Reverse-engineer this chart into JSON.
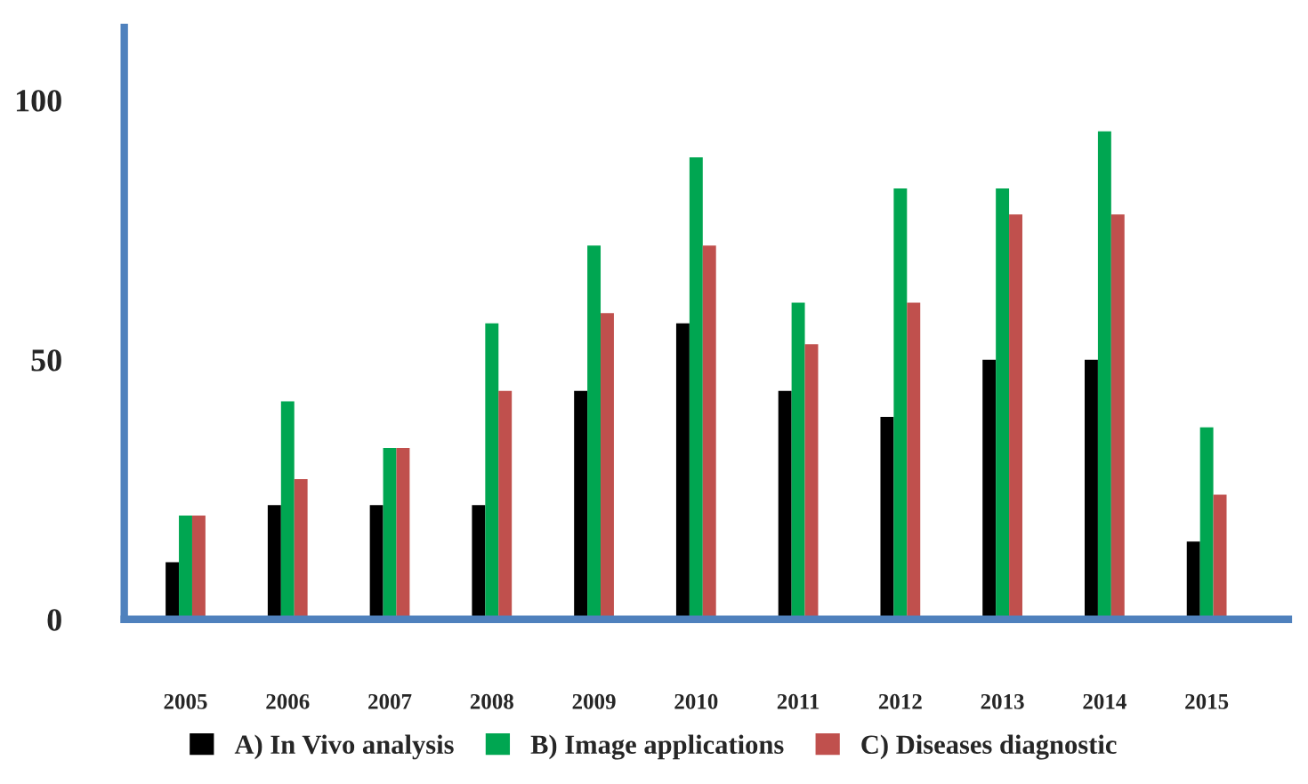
{
  "chart_data": {
    "type": "bar",
    "categories": [
      "2005",
      "2006",
      "2007",
      "2008",
      "2009",
      "2010",
      "2011",
      "2012",
      "2013",
      "2014",
      "2015"
    ],
    "series": [
      {
        "name": "A) In Vivo analysis",
        "color": "#000000",
        "values": [
          11,
          22,
          22,
          22,
          44,
          57,
          44,
          39,
          50,
          50,
          15
        ]
      },
      {
        "name": "B) Image applications",
        "color": "#00a651",
        "values": [
          20,
          42,
          33,
          57,
          72,
          89,
          61,
          83,
          83,
          94,
          37
        ]
      },
      {
        "name": "C) Diseases diagnostic",
        "color": "#c0504d",
        "values": [
          20,
          27,
          33,
          44,
          59,
          72,
          53,
          61,
          78,
          78,
          24
        ]
      }
    ],
    "ylim": [
      0,
      114
    ],
    "yticks": [
      0,
      50,
      100
    ],
    "grid": false,
    "legend": "bottom"
  }
}
